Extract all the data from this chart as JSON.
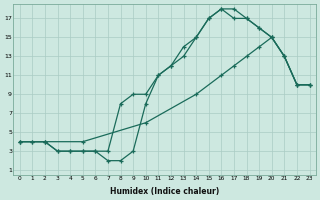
{
  "xlabel": "Humidex (Indice chaleur)",
  "bg_color": "#cde8e0",
  "grid_color": "#aaccc4",
  "line_color": "#1a6b5a",
  "xlim": [
    -0.5,
    23.5
  ],
  "ylim": [
    0.5,
    18.5
  ],
  "xticks": [
    0,
    1,
    2,
    3,
    4,
    5,
    6,
    7,
    8,
    9,
    10,
    11,
    12,
    13,
    14,
    15,
    16,
    17,
    18,
    19,
    20,
    21,
    22,
    23
  ],
  "yticks": [
    1,
    3,
    5,
    7,
    9,
    11,
    13,
    15,
    17
  ],
  "line1_x": [
    0,
    1,
    2,
    3,
    4,
    5,
    6,
    7,
    8,
    9,
    10,
    11,
    12,
    13,
    14,
    15,
    16,
    17,
    18,
    19,
    20,
    21,
    22,
    23
  ],
  "line1_y": [
    4,
    4,
    4,
    3,
    3,
    3,
    3,
    2,
    2,
    3,
    8,
    11,
    12,
    14,
    15,
    17,
    18,
    18,
    17,
    16,
    15,
    13,
    10,
    10
  ],
  "line2_x": [
    0,
    1,
    2,
    3,
    4,
    5,
    6,
    7,
    8,
    9,
    10,
    11,
    12,
    13,
    14,
    15,
    16,
    17,
    18,
    19,
    20,
    21,
    22,
    23
  ],
  "line2_y": [
    4,
    4,
    4,
    3,
    3,
    3,
    3,
    3,
    8,
    9,
    9,
    11,
    12,
    13,
    15,
    17,
    18,
    17,
    17,
    16,
    15,
    13,
    10,
    10
  ],
  "line3_x": [
    0,
    2,
    5,
    10,
    14,
    16,
    17,
    18,
    19,
    20,
    21,
    22,
    23
  ],
  "line3_y": [
    4,
    4,
    4,
    6,
    9,
    11,
    12,
    13,
    14,
    15,
    13,
    10,
    10
  ]
}
